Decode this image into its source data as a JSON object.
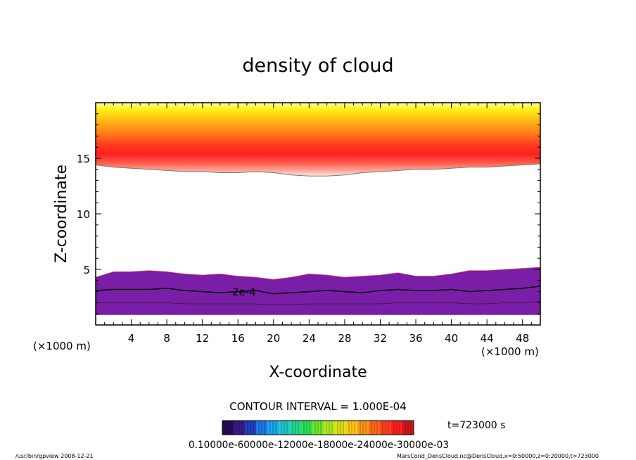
{
  "chart_data": {
    "type": "heatmap",
    "title": "density of cloud",
    "xlabel": "X-coordinate",
    "ylabel": "Z-coordinate",
    "x_unit_label": "(×1000 m)",
    "y_unit_label": "(×1000 m)",
    "xlim": [
      0,
      50
    ],
    "ylim": [
      0,
      20
    ],
    "x_ticks": [
      4,
      8,
      12,
      16,
      20,
      24,
      28,
      32,
      36,
      40,
      44,
      48
    ],
    "y_ticks": [
      5,
      10,
      15
    ],
    "x": [
      0,
      2,
      4,
      6,
      8,
      10,
      12,
      14,
      16,
      18,
      20,
      22,
      24,
      26,
      28,
      30,
      32,
      34,
      36,
      38,
      40,
      42,
      44,
      46,
      48,
      50
    ],
    "upper_layer_base": [
      14.4,
      14.2,
      14.1,
      14.0,
      13.9,
      13.8,
      13.8,
      13.7,
      13.7,
      13.8,
      13.7,
      13.5,
      13.4,
      13.4,
      13.5,
      13.7,
      13.8,
      13.9,
      14.0,
      14.0,
      14.1,
      14.2,
      14.2,
      14.3,
      14.4,
      14.5
    ],
    "lower_layer_top": [
      4.3,
      4.8,
      4.8,
      4.9,
      4.8,
      4.6,
      4.5,
      4.6,
      4.4,
      4.3,
      4.1,
      4.3,
      4.6,
      4.5,
      4.3,
      4.4,
      4.5,
      4.7,
      4.4,
      4.4,
      4.6,
      4.9,
      4.9,
      5.0,
      5.1,
      5.2
    ],
    "contour_2e-4": [
      3.1,
      3.2,
      3.2,
      3.2,
      3.3,
      3.1,
      3.0,
      2.9,
      3.0,
      3.1,
      2.8,
      2.9,
      3.0,
      3.1,
      3.0,
      2.9,
      3.1,
      3.2,
      3.1,
      3.1,
      3.2,
      3.0,
      3.1,
      3.2,
      3.3,
      3.5
    ],
    "contour_lower": [
      2.0,
      2.0,
      2.0,
      2.0,
      2.0,
      1.9,
      1.9,
      1.9,
      1.9,
      1.9,
      1.8,
      1.8,
      1.9,
      1.9,
      1.9,
      1.9,
      1.9,
      2.0,
      2.0,
      2.0,
      2.0,
      1.9,
      1.9,
      2.0,
      2.0,
      2.1
    ],
    "contour_label": "2e-4",
    "contour_interval_text": "CONTOUR INTERVAL = 1.000E-04",
    "time_text": "t=723000 s",
    "colorbar_labels_text": "0.10000e-60000e-12000e-18000e-24000e-30000e-03",
    "colors": {
      "band_colors": [
        "#7a1ea8",
        "#2a3cff",
        "#1fa0ff",
        "#22d0d0",
        "#2ee05a",
        "#88ea2a",
        "#d9ec1c",
        "#ffd21a",
        "#ff9a18",
        "#ff5a20",
        "#ff2a1e",
        "#ff7a6a",
        "#ffb4aa"
      ],
      "upper_gradient": [
        "#ffffa0",
        "#ffec10",
        "#ffb414",
        "#ff7a1a",
        "#ff3a1c",
        "#ff2020",
        "#ff4e3a",
        "#ffb0a8",
        "#ffe8e4"
      ]
    }
  },
  "footer": {
    "left": "/usr/bin/gpview   2008-12-21",
    "right": "MarsCond_DensCloud.nc@DensCloud,x=0:50000,z=0:20000,t=723000"
  }
}
